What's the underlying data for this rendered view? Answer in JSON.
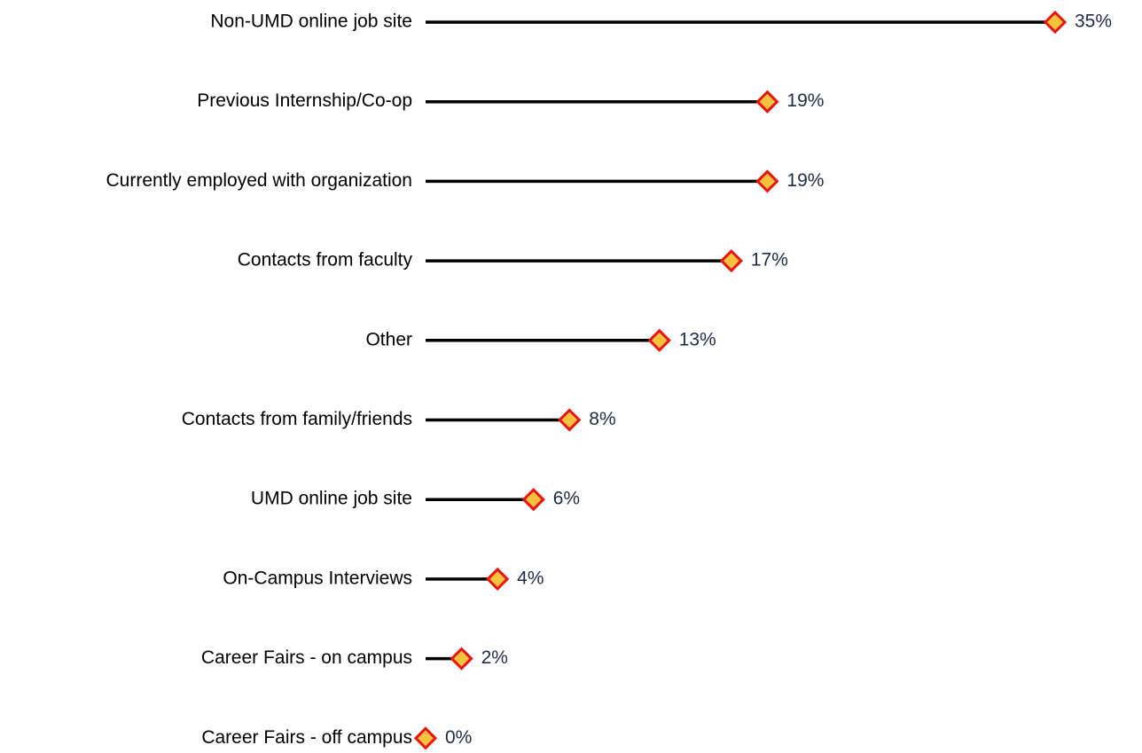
{
  "chart_data": {
    "type": "lollipop",
    "orientation": "horizontal",
    "categories": [
      "Non-UMD online job site",
      "Previous Internship/Co-op",
      "Currently employed with organization",
      "Contacts from faculty",
      "Other",
      "Contacts from family/friends",
      "UMD online job site",
      "On-Campus Interviews",
      "Career Fairs - on campus",
      "Career Fairs - off campus"
    ],
    "values": [
      35,
      19,
      19,
      17,
      13,
      8,
      6,
      4,
      2,
      0
    ],
    "value_labels": [
      "35%",
      "19%",
      "19%",
      "17%",
      "13%",
      "8%",
      "6%",
      "4%",
      "2%",
      "0%"
    ],
    "xlim": [
      0,
      35
    ],
    "color": "#000000",
    "marker_fill": "#f7c23e",
    "marker_stroke": "#e8140f",
    "label_color": "#1f2a44"
  }
}
